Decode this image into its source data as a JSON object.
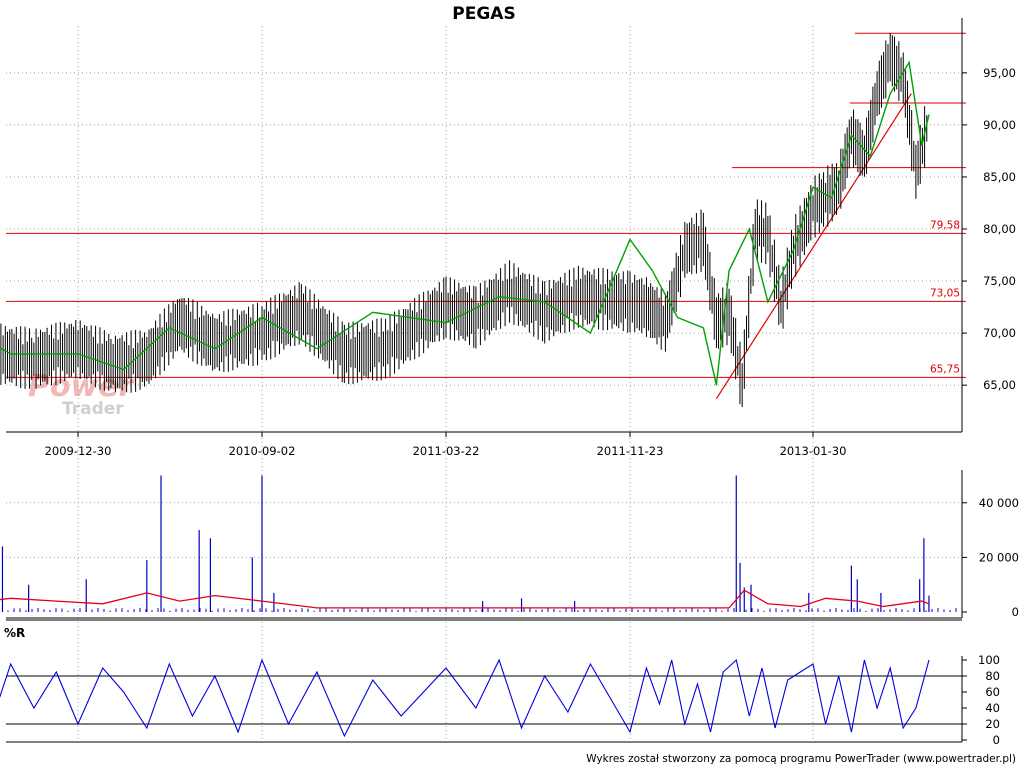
{
  "title": "PEGAS",
  "footer": "Wykres został stworzony za pomocą programu PowerTrader (www.powertrader.pl)",
  "watermark": {
    "line1": "Power",
    "line2": "Trader"
  },
  "colors": {
    "price": "#000000",
    "ma": "#00a000",
    "levels": "#e00000",
    "volume": "#0000c0",
    "volume_ma": "#e00020",
    "wr": "#0000e0",
    "grid": "#a0a0a0"
  },
  "chart_data": [
    {
      "type": "line",
      "panel": "price",
      "title": "PEGAS",
      "x_ticks": [
        "2009-12-30",
        "2010-09-02",
        "2011-03-22",
        "2011-11-23",
        "2013-01-30"
      ],
      "y_ticks": [
        "65,00",
        "70,00",
        "75,00",
        "80,00",
        "85,00",
        "90,00",
        "95,00"
      ],
      "ylim": [
        60.5,
        99.5
      ],
      "grid": true,
      "horizontal_levels": [
        {
          "value": 65.75,
          "label": "65,75"
        },
        {
          "value": 73.05,
          "label": "73,05"
        },
        {
          "value": 79.58,
          "label": "79,58"
        },
        {
          "value": 85.9,
          "label": ""
        },
        {
          "value": 92.1,
          "label": ""
        },
        {
          "value": 98.8,
          "label": ""
        }
      ],
      "trendline": {
        "from": {
          "x": "2012-06-15",
          "y": 63.7
        },
        "to": {
          "x": "2013-09-20",
          "y": 93.0
        }
      },
      "series": [
        {
          "kind": "price",
          "x": [
            "2009-08-01",
            "2009-09-15",
            "2009-11-01",
            "2009-12-30",
            "2010-02-15",
            "2010-04-01",
            "2010-05-15",
            "2010-07-01",
            "2010-09-02",
            "2010-10-15",
            "2010-12-01",
            "2011-01-15",
            "2011-03-22",
            "2011-05-01",
            "2011-06-15",
            "2011-08-01",
            "2011-09-15",
            "2011-11-23",
            "2012-01-01",
            "2012-02-15",
            "2012-04-01",
            "2012-05-15",
            "2012-06-15",
            "2012-07-15",
            "2012-08-15",
            "2012-09-15",
            "2012-10-15",
            "2012-11-15",
            "2012-12-15",
            "2013-01-30",
            "2013-03-01",
            "2013-04-01",
            "2013-05-01",
            "2013-06-01",
            "2013-07-01",
            "2013-08-01",
            "2013-09-01",
            "2013-10-01",
            "2013-11-01"
          ],
          "y": [
            68.5,
            68.0,
            67.5,
            68.5,
            67.0,
            67.5,
            71.0,
            69.0,
            70.0,
            72.0,
            68.0,
            68.5,
            72.5,
            71.5,
            74.0,
            72.0,
            73.5,
            73.0,
            72.5,
            71.0,
            78.0,
            79.0,
            71.0,
            72.0,
            65.0,
            80.0,
            79.5,
            72.5,
            78.0,
            82.0,
            83.0,
            84.0,
            89.0,
            87.0,
            93.0,
            96.5,
            94.5,
            85.5,
            90.5
          ]
        },
        {
          "kind": "moving_average",
          "x": [
            "2009-08-01",
            "2009-10-01",
            "2009-12-30",
            "2010-03-01",
            "2010-05-01",
            "2010-07-01",
            "2010-09-02",
            "2010-11-01",
            "2011-01-01",
            "2011-03-22",
            "2011-06-01",
            "2011-08-01",
            "2011-10-01",
            "2011-11-23",
            "2012-01-15",
            "2012-03-15",
            "2012-05-15",
            "2012-06-15",
            "2012-07-15",
            "2012-09-01",
            "2012-10-15",
            "2012-12-15",
            "2013-01-30",
            "2013-03-15",
            "2013-05-01",
            "2013-06-15",
            "2013-08-01",
            "2013-09-15",
            "2013-10-15",
            "2013-11-01"
          ],
          "y": [
            70.5,
            68.0,
            68.0,
            66.5,
            70.5,
            68.5,
            71.5,
            68.5,
            72.0,
            71.0,
            73.5,
            73.0,
            70.0,
            79.0,
            76.0,
            71.5,
            70.5,
            65.0,
            76.0,
            80.0,
            73.0,
            78.0,
            84.0,
            83.0,
            89.0,
            87.0,
            93.0,
            96.0,
            88.0,
            91.0
          ]
        }
      ]
    },
    {
      "type": "bar",
      "panel": "volume",
      "y_ticks": [
        "0",
        "20 000",
        "40 000"
      ],
      "ylim": [
        0,
        52000
      ],
      "grid": true,
      "series": [
        {
          "kind": "volume",
          "x": [
            "2009-08-15",
            "2009-09-20",
            "2009-10-25",
            "2010-01-10",
            "2010-04-01",
            "2010-04-20",
            "2010-06-10",
            "2010-06-25",
            "2010-08-20",
            "2010-09-02",
            "2010-09-15",
            "2011-05-10",
            "2011-07-01",
            "2011-09-10",
            "2012-08-01",
            "2012-08-10",
            "2012-08-20",
            "2012-09-05",
            "2013-01-20",
            "2013-05-01",
            "2013-05-15",
            "2013-07-10",
            "2013-10-10",
            "2013-10-20",
            "2013-11-01"
          ],
          "y": [
            20000,
            24000,
            10000,
            12000,
            19000,
            50000,
            30000,
            27000,
            20000,
            50000,
            7000,
            4000,
            5000,
            4000,
            50000,
            18000,
            9000,
            10000,
            7000,
            17000,
            12000,
            7000,
            12000,
            27000,
            6000
          ]
        },
        {
          "kind": "volume_ma",
          "x": [
            "2009-08-01",
            "2009-10-01",
            "2009-12-01",
            "2010-02-01",
            "2010-04-01",
            "2010-05-15",
            "2010-07-01",
            "2010-09-02",
            "2010-11-01",
            "2011-06-01",
            "2012-01-01",
            "2012-07-15",
            "2012-08-20",
            "2012-10-15",
            "2013-01-01",
            "2013-03-01",
            "2013-05-15",
            "2013-07-15",
            "2013-10-15",
            "2013-11-01"
          ],
          "y": [
            3000,
            5000,
            4000,
            3000,
            7000,
            4000,
            6000,
            4000,
            1500,
            1500,
            1500,
            1500,
            8000,
            3000,
            2000,
            5000,
            4000,
            2000,
            4000,
            3000
          ]
        }
      ]
    },
    {
      "type": "line",
      "panel": "williams_r",
      "title": "%R",
      "y_ticks": [
        "0",
        "20",
        "40",
        "60",
        "80",
        "100"
      ],
      "ylim": [
        0,
        100
      ],
      "reference_lines": [
        20,
        80
      ],
      "grid": true,
      "series": [
        {
          "kind": "williams_r",
          "x": [
            "2009-08-01",
            "2009-09-01",
            "2009-10-01",
            "2009-11-01",
            "2009-12-01",
            "2009-12-30",
            "2010-02-01",
            "2010-03-01",
            "2010-04-01",
            "2010-05-01",
            "2010-06-01",
            "2010-07-01",
            "2010-08-01",
            "2010-09-02",
            "2010-10-01",
            "2010-11-01",
            "2010-12-01",
            "2011-01-01",
            "2011-02-01",
            "2011-03-22",
            "2011-05-01",
            "2011-06-01",
            "2011-07-01",
            "2011-08-01",
            "2011-09-01",
            "2011-10-01",
            "2011-11-23",
            "2012-01-01",
            "2012-02-01",
            "2012-03-01",
            "2012-04-01",
            "2012-05-01",
            "2012-06-01",
            "2012-07-01",
            "2012-08-01",
            "2012-09-01",
            "2012-10-01",
            "2012-11-01",
            "2012-12-01",
            "2013-01-30",
            "2013-03-01",
            "2013-04-01",
            "2013-05-01",
            "2013-06-01",
            "2013-07-01",
            "2013-08-01",
            "2013-09-01",
            "2013-10-01",
            "2013-11-01"
          ],
          "y": [
            30,
            10,
            95,
            40,
            85,
            20,
            90,
            60,
            15,
            95,
            30,
            80,
            10,
            100,
            20,
            85,
            5,
            75,
            30,
            90,
            40,
            100,
            15,
            80,
            35,
            95,
            10,
            90,
            45,
            100,
            20,
            70,
            10,
            85,
            100,
            30,
            90,
            15,
            75,
            95,
            20,
            80,
            10,
            100,
            40,
            90,
            15,
            40,
            100
          ]
        }
      ]
    }
  ]
}
